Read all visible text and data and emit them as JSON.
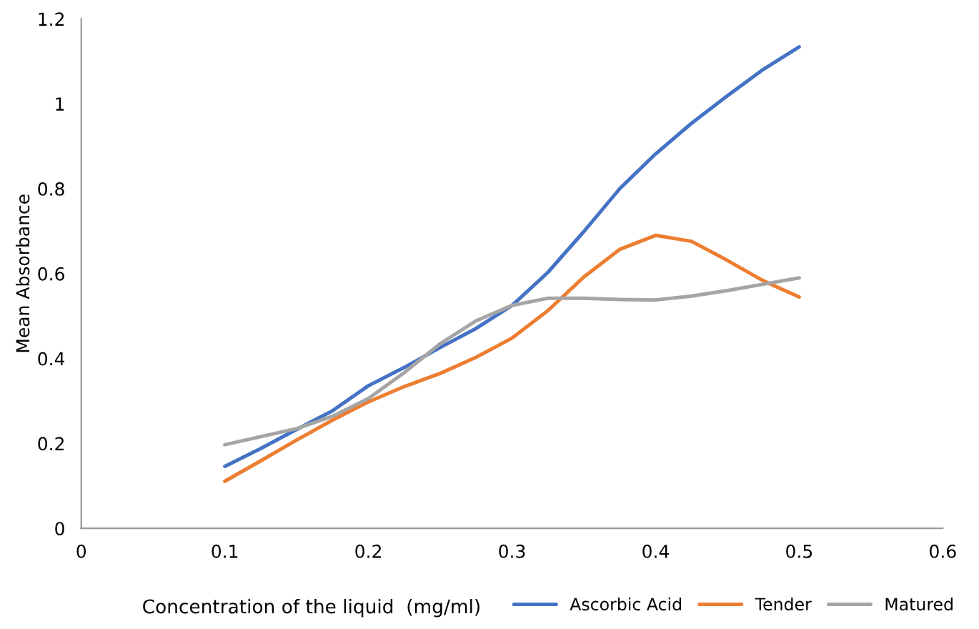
{
  "chart_data": {
    "type": "line",
    "xlabel": "Concentration of the liquid  (mg/ml)",
    "ylabel": "Mean Absorbance",
    "x": [
      0.1,
      0.125,
      0.15,
      0.175,
      0.2,
      0.225,
      0.25,
      0.275,
      0.3,
      0.325,
      0.35,
      0.375,
      0.4,
      0.425,
      0.45,
      0.475,
      0.5
    ],
    "series": [
      {
        "name": "Ascorbic Acid",
        "color": "#4472c4",
        "values": [
          0.146,
          0.188,
          0.233,
          0.277,
          0.336,
          0.379,
          0.426,
          0.471,
          0.525,
          0.603,
          0.699,
          0.8,
          0.882,
          0.954,
          1.019,
          1.081,
          1.134
        ]
      },
      {
        "name": "Tender",
        "color": "#ed7d31",
        "values": [
          0.111,
          0.159,
          0.208,
          0.255,
          0.298,
          0.334,
          0.365,
          0.403,
          0.448,
          0.513,
          0.592,
          0.657,
          0.69,
          0.676,
          0.631,
          0.583,
          0.545
        ]
      },
      {
        "name": "Matured",
        "color": "#a5a5a5",
        "values": [
          0.197,
          0.216,
          0.235,
          0.264,
          0.306,
          0.367,
          0.435,
          0.489,
          0.525,
          0.542,
          0.542,
          0.539,
          0.538,
          0.547,
          0.56,
          0.575,
          0.59
        ]
      }
    ],
    "xlim": [
      0,
      0.6
    ],
    "xticks": [
      0,
      0.1,
      0.2,
      0.3,
      0.4,
      0.5,
      0.6
    ],
    "ylim": [
      0,
      1.2
    ],
    "yticks": [
      0,
      0.2,
      0.4,
      0.6,
      0.8,
      1,
      1.2
    ],
    "grid": false,
    "legend": "bottom right",
    "marker": "none",
    "line_style": "solid"
  }
}
